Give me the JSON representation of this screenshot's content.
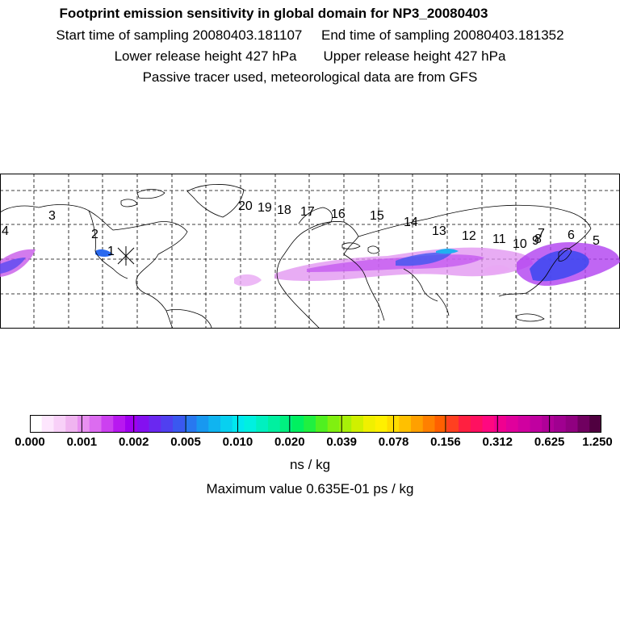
{
  "header": {
    "title": "Footprint emission sensitivity in global domain for NP3_20080403",
    "start_time": "Start time of sampling 20080403.181107",
    "end_time": "End time of sampling 20080403.181352",
    "lower_height": "Lower release height  427 hPa",
    "upper_height": "Upper release height  427 hPa",
    "tracer_note": "Passive tracer used, meteorological data are from GFS"
  },
  "map": {
    "trajectory_labels": [
      "1",
      "2",
      "3",
      "4",
      "5",
      "6",
      "7",
      "8",
      "9",
      "10",
      "11",
      "12",
      "13",
      "14",
      "15",
      "16",
      "17",
      "18",
      "19",
      "20"
    ],
    "release_marker": "X"
  },
  "colorbar": {
    "tick_labels": [
      "0.000",
      "0.001",
      "0.002",
      "0.005",
      "0.010",
      "0.020",
      "0.039",
      "0.078",
      "0.156",
      "0.312",
      "0.625",
      "1.250"
    ],
    "colors": [
      "#ffffff",
      "#fde6fd",
      "#f8d0f8",
      "#f0b4f0",
      "#e890f0",
      "#dc6cf0",
      "#cc40f0",
      "#b818f0",
      "#a000f0",
      "#8410f0",
      "#6a28f0",
      "#5040f0",
      "#3a58f0",
      "#2878f0",
      "#1898f0",
      "#10b4f0",
      "#08d0f0",
      "#00e8f0",
      "#00f0e0",
      "#00f0c0",
      "#00f0a0",
      "#00f080",
      "#00f060",
      "#20f040",
      "#50f020",
      "#80f010",
      "#a8f008",
      "#d0f000",
      "#f0f000",
      "#fff000",
      "#ffdc00",
      "#ffc000",
      "#ffa000",
      "#ff8000",
      "#ff6000",
      "#ff4020",
      "#ff2040",
      "#ff1060",
      "#ff0880",
      "#f00090",
      "#e0009c",
      "#d000a0",
      "#c000a0",
      "#b00098",
      "#a00090",
      "#900080",
      "#700060",
      "#500040"
    ],
    "units": "ns / kg"
  },
  "footer": {
    "max_value": "Maximum value  0.635E-01 ps / kg"
  }
}
